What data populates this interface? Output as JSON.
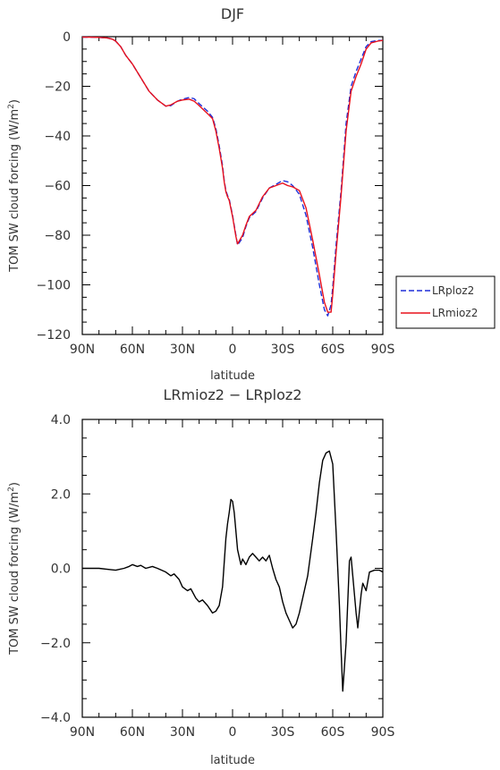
{
  "chart_data": [
    {
      "type": "line",
      "title": "DJF",
      "xlabel": "latitude",
      "ylabel": "TOM SW cloud forcing (W/m²)",
      "ylabel_parts": {
        "main": "TOM SW cloud forcing (W/m",
        "sup": "2",
        "end": ")"
      },
      "x_tick_labels": [
        "90N",
        "60N",
        "30N",
        "0",
        "30S",
        "60S",
        "90S"
      ],
      "x_tick_values": [
        90,
        60,
        30,
        0,
        -30,
        -60,
        -90
      ],
      "xlim": [
        90,
        -90
      ],
      "y_tick_labels": [
        "0",
        "−20",
        "−40",
        "−60",
        "−80",
        "−100",
        "−120"
      ],
      "y_tick_values": [
        0,
        -20,
        -40,
        -60,
        -80,
        -100,
        -120
      ],
      "ylim": [
        -120,
        0
      ],
      "grid": false,
      "legend_position": "right",
      "x": [
        90,
        85,
        80,
        75,
        72,
        70,
        67,
        64,
        60,
        55,
        50,
        45,
        40,
        37,
        33,
        30,
        26,
        23,
        20,
        15,
        12,
        10,
        8,
        6,
        5,
        4,
        3,
        2,
        0,
        -2,
        -3,
        -6,
        -8,
        -10,
        -14,
        -18,
        -22,
        -26,
        -30,
        -33,
        -36,
        -40,
        -44,
        -48,
        -52,
        -55,
        -57,
        -59,
        -60,
        -62,
        -65,
        -68,
        -71,
        -74,
        -77,
        -80,
        -83,
        -87,
        -90
      ],
      "series": [
        {
          "name": "LRploz2",
          "color": "#1f2fd8",
          "dash": true,
          "values": [
            -0.2,
            -0.2,
            -0.3,
            -0.5,
            -1.0,
            -1.8,
            -4.0,
            -7.5,
            -11.0,
            -16.5,
            -22.0,
            -25.5,
            -28.0,
            -27.8,
            -26.0,
            -25.2,
            -24.5,
            -25.0,
            -27.0,
            -30.0,
            -32.5,
            -37.0,
            -44.0,
            -52.0,
            -58.0,
            -62.0,
            -64.0,
            -65.5,
            -72.0,
            -80.0,
            -84.0,
            -81.0,
            -76.5,
            -73.0,
            -70.5,
            -65.0,
            -61.0,
            -59.5,
            -58.0,
            -58.5,
            -60.0,
            -63.5,
            -72.0,
            -85.0,
            -100.0,
            -110.0,
            -112.5,
            -108.0,
            -101.0,
            -84.0,
            -62.0,
            -35.0,
            -20.0,
            -14.0,
            -9.0,
            -4.0,
            -2.0,
            -1.5,
            -1.5
          ]
        },
        {
          "name": "LRmioz2",
          "color": "#e8101c",
          "dash": false,
          "values": [
            -0.2,
            -0.2,
            -0.3,
            -0.5,
            -1.0,
            -1.8,
            -4.0,
            -7.5,
            -11.0,
            -16.5,
            -22.0,
            -25.5,
            -28.0,
            -27.5,
            -26.0,
            -25.5,
            -25.2,
            -26.0,
            -27.8,
            -31.0,
            -33.0,
            -38.0,
            -45.0,
            -53.0,
            -58.5,
            -62.5,
            -64.5,
            -66.0,
            -72.5,
            -80.5,
            -83.5,
            -80.0,
            -76.0,
            -72.5,
            -70.0,
            -64.5,
            -61.0,
            -60.0,
            -59.0,
            -60.0,
            -60.5,
            -62.0,
            -69.0,
            -82.0,
            -96.0,
            -107.0,
            -111.0,
            -111.0,
            -104.0,
            -87.0,
            -64.0,
            -38.0,
            -22.0,
            -16.0,
            -11.0,
            -5.0,
            -2.5,
            -1.8,
            -1.5
          ]
        }
      ]
    },
    {
      "type": "line",
      "title": "LRmioz2 − LRploz2",
      "xlabel": "latitude",
      "ylabel": "TOM SW cloud forcing (W/m²)",
      "ylabel_parts": {
        "main": "TOM SW cloud forcing (W/m",
        "sup": "2",
        "end": ")"
      },
      "x_tick_labels": [
        "90N",
        "60N",
        "30N",
        "0",
        "30S",
        "60S",
        "90S"
      ],
      "x_tick_values": [
        90,
        60,
        30,
        0,
        -30,
        -60,
        -90
      ],
      "xlim": [
        90,
        -90
      ],
      "y_tick_labels": [
        "4.0",
        "2.0",
        "0.0",
        "−2.0",
        "−4.0"
      ],
      "y_tick_values": [
        4,
        2,
        0,
        -2,
        -4
      ],
      "ylim": [
        -4,
        4
      ],
      "grid": false,
      "x": [
        90,
        80,
        70,
        65,
        62,
        60,
        57,
        55,
        52,
        48,
        45,
        40,
        37,
        35,
        32,
        30,
        27,
        25,
        22,
        20,
        18,
        15,
        12,
        10,
        8,
        6,
        4,
        3,
        2,
        1,
        0,
        -1,
        -3,
        -5,
        -6,
        -8,
        -10,
        -12,
        -14,
        -16,
        -18,
        -20,
        -22,
        -24,
        -26,
        -28,
        -30,
        -32,
        -34,
        -36,
        -38,
        -40,
        -42,
        -45,
        -48,
        -50,
        -52,
        -54,
        -56,
        -58,
        -60,
        -62,
        -64,
        -65,
        -66,
        -68,
        -70,
        -71,
        -72,
        -74,
        -75,
        -77,
        -78,
        -80,
        -82,
        -85,
        -88,
        -90
      ],
      "series": [
        {
          "name": "",
          "color": "#000000",
          "dash": false,
          "values": [
            0.0,
            0.0,
            -0.05,
            0.0,
            0.05,
            0.1,
            0.05,
            0.08,
            0.0,
            0.05,
            0.0,
            -0.1,
            -0.2,
            -0.15,
            -0.3,
            -0.5,
            -0.6,
            -0.55,
            -0.8,
            -0.9,
            -0.85,
            -1.0,
            -1.2,
            -1.15,
            -1.0,
            -0.5,
            0.8,
            1.2,
            1.5,
            1.85,
            1.8,
            1.5,
            0.5,
            0.1,
            0.25,
            0.1,
            0.3,
            0.4,
            0.3,
            0.2,
            0.3,
            0.2,
            0.35,
            0.0,
            -0.3,
            -0.5,
            -0.9,
            -1.2,
            -1.4,
            -1.6,
            -1.5,
            -1.2,
            -0.8,
            -0.2,
            0.8,
            1.5,
            2.3,
            2.9,
            3.1,
            3.15,
            2.8,
            1.0,
            -1.0,
            -2.2,
            -3.3,
            -2.0,
            0.2,
            0.3,
            -0.2,
            -1.2,
            -1.6,
            -0.7,
            -0.4,
            -0.6,
            -0.1,
            -0.05,
            -0.05,
            -0.1
          ]
        }
      ]
    }
  ]
}
